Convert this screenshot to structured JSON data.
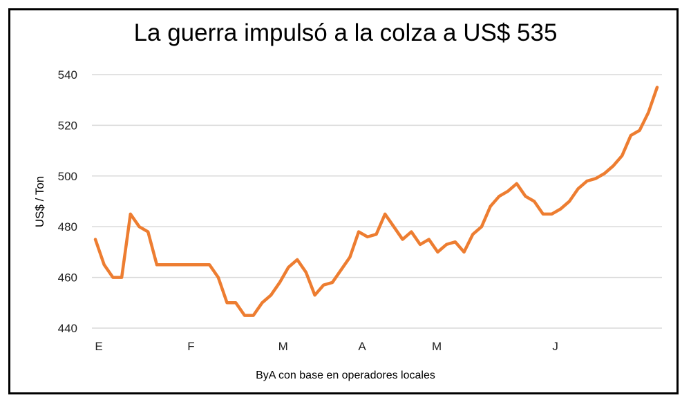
{
  "chart_data": {
    "type": "line",
    "title": "La guerra impulsó a la colza a US$ 535",
    "ylabel": "US$ / Ton",
    "xlabel": "ByA con base en  operadores locales",
    "ylim": [
      440,
      540
    ],
    "yticks": [
      440,
      460,
      480,
      500,
      520,
      540
    ],
    "grid": true,
    "line_color": "#ED7D31",
    "x_tick_labels": [
      {
        "label": "E",
        "index": 0
      },
      {
        "label": "F",
        "index": 10.5
      },
      {
        "label": "M",
        "index": 21
      },
      {
        "label": "A",
        "index": 30
      },
      {
        "label": "M",
        "index": 38.5
      },
      {
        "label": "J",
        "index": 52
      }
    ],
    "series": [
      {
        "values": [
          475,
          465,
          460,
          460,
          485,
          480,
          478,
          465,
          465,
          465,
          465,
          465,
          465,
          465,
          460,
          450,
          450,
          445,
          445,
          450,
          453,
          458,
          464,
          467,
          462,
          453,
          457,
          458,
          463,
          468,
          478,
          476,
          477,
          485,
          480,
          475,
          478,
          473,
          475,
          470,
          473,
          474,
          470,
          477,
          480,
          488,
          492,
          494,
          497,
          492,
          490,
          485,
          485,
          487,
          490,
          495,
          498,
          499,
          501,
          504,
          508,
          516,
          518,
          525,
          535
        ]
      }
    ]
  }
}
